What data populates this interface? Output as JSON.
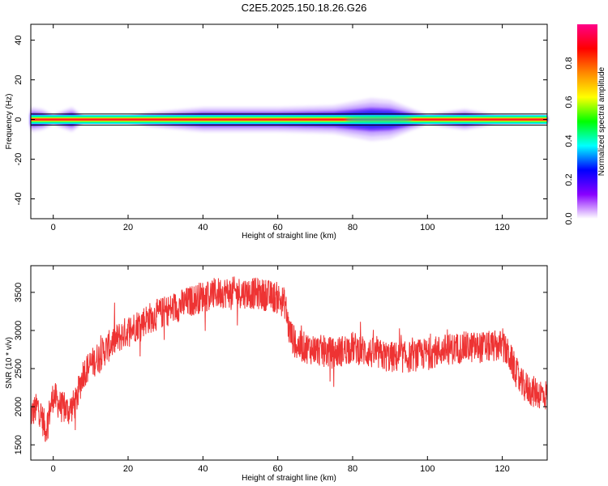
{
  "title": "C2E5.2025.150.18.26.G26",
  "colors": {
    "signal": "#ee3333",
    "frame": "#000000"
  },
  "chart_data": [
    {
      "type": "heatmap",
      "xlabel": "Height of straight line (km)",
      "ylabel": "Frequency (Hz)",
      "xlim": [
        -6,
        132
      ],
      "ylim": [
        -50,
        48
      ],
      "xticks": [
        0,
        20,
        40,
        60,
        80,
        100,
        120
      ],
      "yticks": [
        -40,
        -20,
        0,
        20,
        40
      ],
      "colorbar": {
        "label": "Normalized spectral amplitude",
        "range": [
          0,
          1
        ],
        "ticks": [
          "0.0",
          "0.2",
          "0.4",
          "0.6",
          "0.8"
        ],
        "colormap": [
          "#ffffff",
          "#8800ff",
          "#0000ff",
          "#00ffff",
          "#00ff00",
          "#ffff00",
          "#ff8800",
          "#ff0000",
          "#ff0088"
        ]
      },
      "center_frequency_hz": 0,
      "band_spread_hz": [
        {
          "x": -6,
          "spread": 3.5
        },
        {
          "x": -3,
          "spread": 3
        },
        {
          "x": 0,
          "spread": 1.5
        },
        {
          "x": 5,
          "spread": 3.5
        },
        {
          "x": 8,
          "spread": 1
        },
        {
          "x": 20,
          "spread": 1
        },
        {
          "x": 25,
          "spread": 2
        },
        {
          "x": 40,
          "spread": 3.5
        },
        {
          "x": 60,
          "spread": 3.5
        },
        {
          "x": 75,
          "spread": 4
        },
        {
          "x": 85,
          "spread": 6
        },
        {
          "x": 90,
          "spread": 5.5
        },
        {
          "x": 96,
          "spread": 3
        },
        {
          "x": 100,
          "spread": 1.5
        },
        {
          "x": 110,
          "spread": 3
        },
        {
          "x": 118,
          "spread": 1.5
        },
        {
          "x": 132,
          "spread": 1
        }
      ]
    },
    {
      "type": "line",
      "xlabel": "Height of straight line (km)",
      "ylabel": "SNR (10 * v/v)",
      "xlim": [
        -6,
        132
      ],
      "ylim": [
        1300,
        3850
      ],
      "xticks": [
        0,
        20,
        40,
        60,
        80,
        100,
        120
      ],
      "yticks": [
        1500,
        2000,
        2500,
        3000,
        3500
      ],
      "series": [
        {
          "x": [
            -6,
            -4,
            -2,
            0,
            2,
            4,
            6,
            8,
            12,
            16,
            20,
            25,
            30,
            35,
            40,
            45,
            50,
            55,
            60,
            62,
            63,
            65,
            70,
            75,
            80,
            85,
            90,
            95,
            100,
            105,
            110,
            115,
            120,
            122,
            125,
            128,
            132
          ],
          "values": [
            1900,
            2000,
            1700,
            2150,
            2000,
            1950,
            2050,
            2450,
            2650,
            2850,
            3000,
            3150,
            3250,
            3350,
            3450,
            3500,
            3500,
            3480,
            3430,
            3350,
            3000,
            2800,
            2750,
            2700,
            2780,
            2700,
            2650,
            2650,
            2700,
            2750,
            2780,
            2780,
            2800,
            2650,
            2300,
            2200,
            2150
          ]
        }
      ]
    }
  ]
}
